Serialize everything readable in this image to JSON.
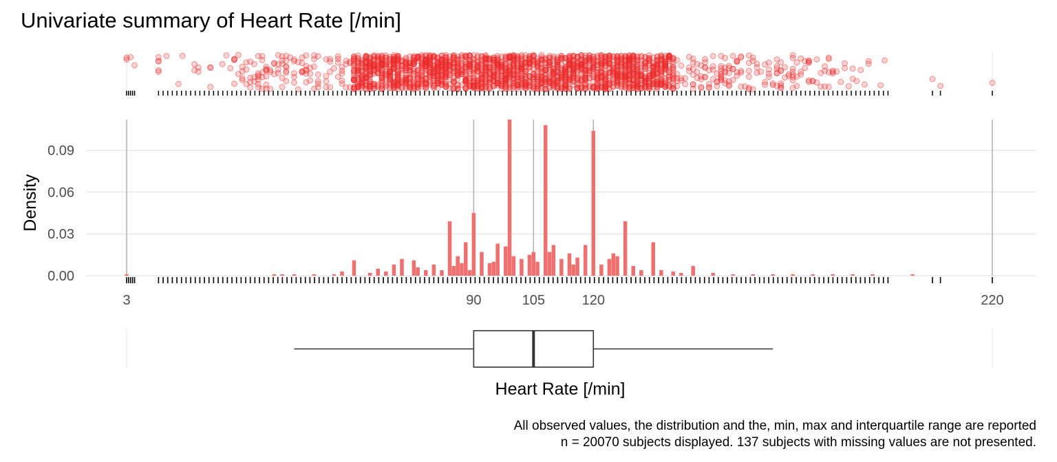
{
  "title": "Univariate summary of Heart Rate [/min]",
  "caption": {
    "line1": "All observed values, the distribution and the, min, max and interquartile range are reported",
    "line2": "n = 20070 subjects displayed. 137 subjects with missing values are not presented."
  },
  "colors": {
    "points": "#f03030",
    "bars": "#f07070",
    "box": "#333333",
    "grid": "#e8e8e8",
    "vline": "#b0b0b0"
  },
  "chart_data": {
    "type": "bar",
    "title": "Univariate summary of Heart Rate [/min]",
    "xlabel": "Heart Rate [/min]",
    "ylabel": "Density",
    "xlim": [
      3,
      220
    ],
    "ylim": [
      0,
      0.1115
    ],
    "x_ticks": [
      3,
      90,
      105,
      120,
      220
    ],
    "y_ticks": [
      0.0,
      0.03,
      0.06,
      0.09
    ],
    "y_tick_labels": [
      "0.00",
      "0.03",
      "0.06",
      "0.09"
    ],
    "summary": {
      "min": 3,
      "q1": 90,
      "median": 105,
      "q3": 120,
      "max": 220,
      "whisker_low": 45,
      "whisker_high": 165
    },
    "x": [
      3,
      40,
      42,
      45,
      50,
      55,
      57,
      60,
      64,
      66,
      68,
      70,
      72,
      75,
      76,
      78,
      80,
      82,
      84,
      85,
      86,
      87,
      88,
      89,
      90,
      92,
      94,
      95,
      96,
      98,
      99,
      100,
      102,
      104,
      105,
      106,
      108,
      109,
      110,
      112,
      114,
      115,
      116,
      118,
      120,
      122,
      124,
      125,
      126,
      128,
      130,
      132,
      135,
      137,
      140,
      142,
      145,
      150,
      155,
      160,
      165,
      170,
      175,
      180,
      185,
      190,
      200
    ],
    "values": [
      0.001,
      0.001,
      0.001,
      0.001,
      0.001,
      0.001,
      0.003,
      0.011,
      0.002,
      0.005,
      0.003,
      0.008,
      0.012,
      0.011,
      0.006,
      0.004,
      0.008,
      0.004,
      0.039,
      0.007,
      0.014,
      0.009,
      0.024,
      0.004,
      0.045,
      0.017,
      0.009,
      0.01,
      0.023,
      0.021,
      0.112,
      0.014,
      0.012,
      0.015,
      0.017,
      0.01,
      0.108,
      0.017,
      0.022,
      0.012,
      0.016,
      0.008,
      0.013,
      0.022,
      0.104,
      0.008,
      0.012,
      0.016,
      0.014,
      0.039,
      0.007,
      0.004,
      0.024,
      0.004,
      0.003,
      0.002,
      0.007,
      0.002,
      0.001,
      0.001,
      0.001,
      0.001,
      0.001,
      0.001,
      0.001,
      0.001,
      0.001
    ]
  }
}
